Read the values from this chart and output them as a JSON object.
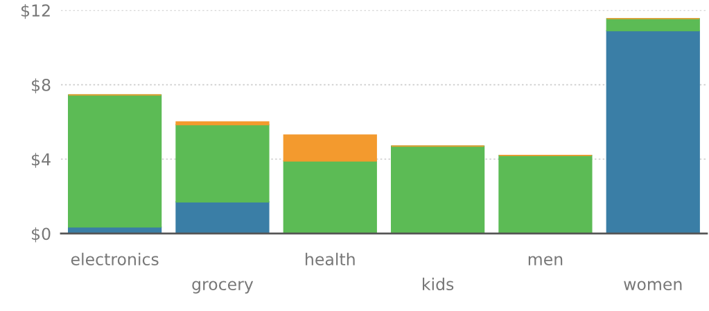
{
  "chart_data": {
    "type": "bar",
    "stacked": true,
    "categories": [
      "electronics",
      "grocery",
      "health",
      "kids",
      "men",
      "women"
    ],
    "series": [
      {
        "color": "#3a7ea6",
        "values": [
          0.35,
          1.7,
          0,
          0,
          0,
          10.9
        ]
      },
      {
        "color": "#5cbb55",
        "values": [
          7.1,
          4.15,
          3.9,
          4.7,
          4.2,
          0.65
        ]
      },
      {
        "color": "#f39a2e",
        "values": [
          0,
          0.15,
          1.4,
          0,
          0,
          0
        ]
      }
    ],
    "ylim": [
      0,
      12
    ],
    "yticks": [
      {
        "value": 0,
        "label": "$0"
      },
      {
        "value": 4,
        "label": "$4"
      },
      {
        "value": 8,
        "label": "$8"
      },
      {
        "value": 12,
        "label": "$12"
      }
    ],
    "grid": "y",
    "legend": false
  }
}
